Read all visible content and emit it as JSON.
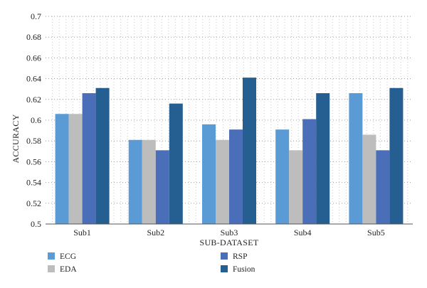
{
  "chart_data": {
    "type": "bar",
    "xlabel": "SUB-DATASET",
    "ylabel": "ACCURACY",
    "ylim": [
      0.5,
      0.7
    ],
    "yticks": [
      0.5,
      0.52,
      0.54,
      0.56,
      0.58,
      0.6,
      0.62,
      0.64,
      0.66,
      0.68,
      0.7
    ],
    "ytick_labels": [
      "0.5",
      "0.52",
      "0.54",
      "0.56",
      "0.58",
      "0.6",
      "0.62",
      "0.64",
      "0.66",
      "0.68",
      "0.7"
    ],
    "grid": "dotted",
    "legend_position": "bottom",
    "categories": [
      "Sub1",
      "Sub2",
      "Sub3",
      "Sub4",
      "Sub5"
    ],
    "series": [
      {
        "name": "ECG",
        "color": "#5b9bd5",
        "values": [
          0.606,
          0.581,
          0.596,
          0.591,
          0.626
        ]
      },
      {
        "name": "EDA",
        "color": "#bdbdbd",
        "values": [
          0.606,
          0.581,
          0.581,
          0.571,
          0.586
        ]
      },
      {
        "name": "RSP",
        "color": "#4a6eb8",
        "values": [
          0.626,
          0.571,
          0.591,
          0.601,
          0.571
        ]
      },
      {
        "name": "Fusion",
        "color": "#255e91",
        "values": [
          0.631,
          0.616,
          0.641,
          0.626,
          0.631
        ]
      }
    ]
  }
}
